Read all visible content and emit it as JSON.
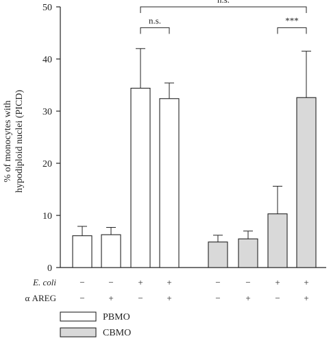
{
  "chart_data": {
    "type": "bar",
    "ylabel_lines": [
      "% of monocytes with",
      "hypodiploid nuclei (PICD)"
    ],
    "ylim": [
      0,
      50
    ],
    "yticks": [
      0,
      10,
      20,
      30,
      40,
      50
    ],
    "series": [
      {
        "name": "PBMO",
        "color": "#ffffff",
        "values": [
          6.1,
          6.3,
          34.4,
          32.4
        ],
        "errors": [
          1.8,
          1.4,
          7.6,
          3.0
        ]
      },
      {
        "name": "CBMO",
        "color": "#d9d9d9",
        "values": [
          4.9,
          5.5,
          10.3,
          32.6
        ],
        "errors": [
          1.3,
          1.5,
          5.3,
          8.9
        ]
      }
    ],
    "conditions": {
      "rows": [
        {
          "label": "E. coli",
          "italic": true,
          "signs": [
            "−",
            "−",
            "+",
            "+",
            "−",
            "−",
            "+",
            "+"
          ]
        },
        {
          "label": "α AREG",
          "italic": false,
          "signs": [
            "−",
            "+",
            "−",
            "+",
            "−",
            "+",
            "−",
            "+"
          ]
        }
      ]
    },
    "annotations": [
      {
        "text": "n.s.",
        "from_bar": 2,
        "to_bar": 3,
        "y": 46
      },
      {
        "text": "***",
        "from_bar": 6,
        "to_bar": 7,
        "y": 46
      },
      {
        "text": "n.s.",
        "from_bar": 2,
        "to_bar": 7,
        "y": 50
      }
    ],
    "legend_position": "bottom-left",
    "grid": false
  }
}
